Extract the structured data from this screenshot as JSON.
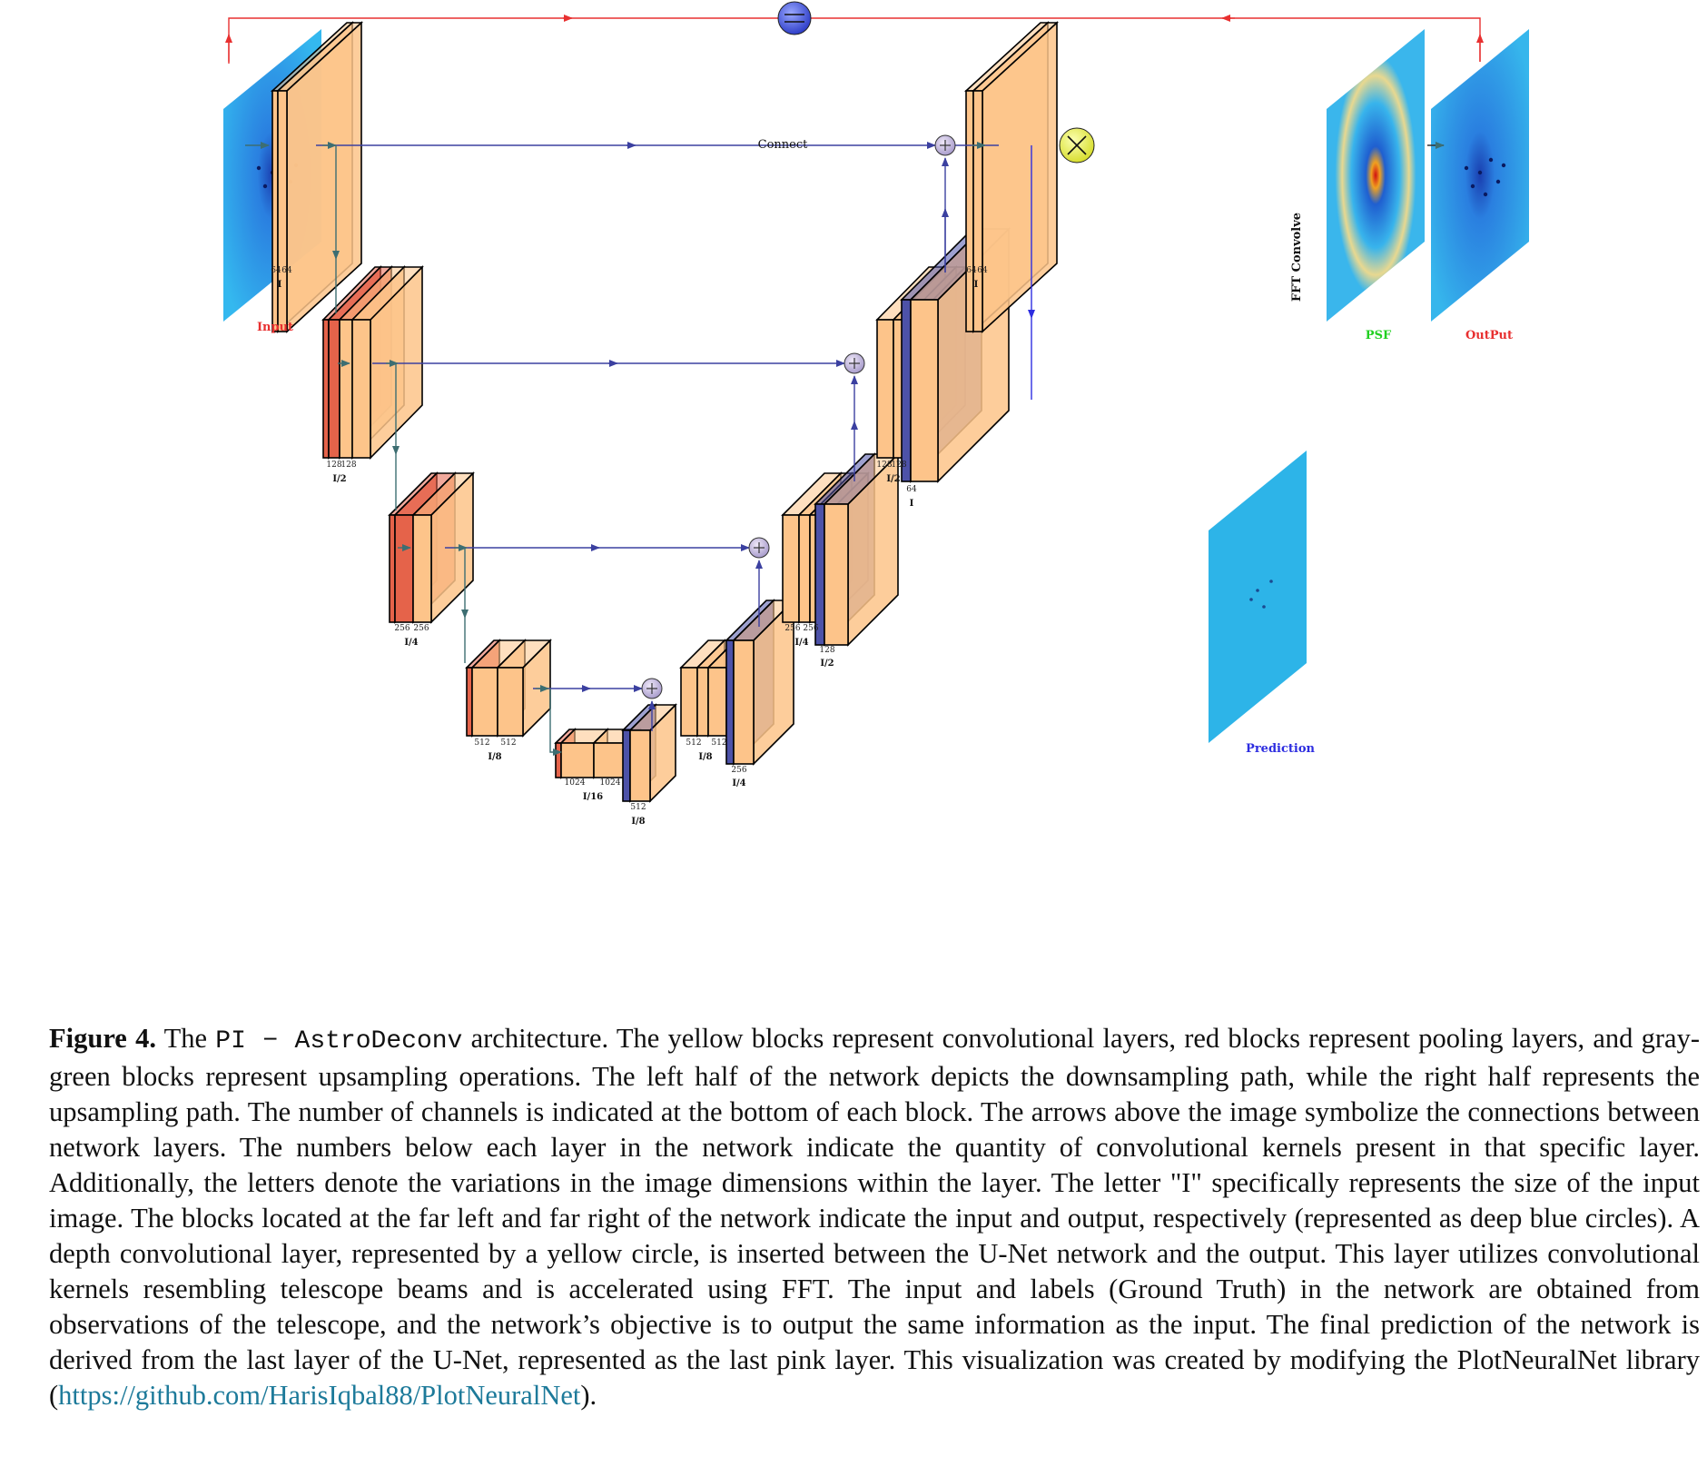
{
  "diagram": {
    "labels": {
      "input": "Input",
      "psf": "PSF",
      "output": "OutPut",
      "prediction": "Prediction",
      "connect": "Connect",
      "fft": "FFT Convolve"
    },
    "enc": [
      {
        "dims": [
          "64",
          "64"
        ],
        "scale": "I"
      },
      {
        "dims": [
          "128",
          "128"
        ],
        "scale": "I/2"
      },
      {
        "dims": [
          "256",
          "256"
        ],
        "scale": "I/4"
      },
      {
        "dims": [
          "512",
          "512"
        ],
        "scale": "I/8"
      },
      {
        "dims": [
          "1024",
          "1024"
        ],
        "scale": "I/16"
      }
    ],
    "dec": [
      {
        "dims": [
          "512",
          "512"
        ],
        "scale": "I/8",
        "up": "256",
        "upscale": "I/4"
      },
      {
        "dims": [
          "256",
          "256"
        ],
        "scale": "I/4",
        "up": "128",
        "upscale": "I/2"
      },
      {
        "dims": [
          "128",
          "128"
        ],
        "scale": "I/2",
        "up": "64",
        "upscale": "I"
      },
      {
        "dims": [
          "64",
          "64"
        ],
        "scale": "I"
      }
    ],
    "bottleneck_up": {
      "dim": "512",
      "scale": "I/8"
    },
    "colors": {
      "conv": "#fdc48a",
      "pool": "#e5634a",
      "upsample": "#4d52a8",
      "skip": "#3b40a0",
      "down": "#3d6e72",
      "loop": "#e83030",
      "image": "#2db4e8"
    }
  },
  "caption": {
    "fig": "Figure 4.",
    "text1": " The ",
    "code": "PI − AstroDeconv",
    "text2": " architecture. The yellow blocks represent convolutional layers, red blocks represent pooling layers, and gray-green blocks represent upsampling operations. The left half of the network depicts the downsampling path, while the right half represents the upsampling path. The number of channels is indicated at the bottom of each block. The arrows above the image symbolize the connections between network layers. The numbers below each layer in the network indicate the quantity of convolutional kernels present in that specific layer. Additionally, the letters denote the variations in the image dimensions within the layer. The letter \"I\" specifically represents the size of the input image. The blocks located at the far left and far right of the network indicate the input and output, respectively (represented as deep blue circles). A depth convolutional layer, represented by a yellow circle, is inserted between the U-Net network and the output. This layer utilizes convolutional kernels resembling telescope beams and is accelerated using FFT. The input and labels (Ground Truth) in the network are obtained from observations of the telescope, and the network’s objective is to output the same information as the input. The final prediction of the network is derived from the last layer of the U-Net, represented as the last pink layer. This visualization was created by modifying the PlotNeuralNet library (",
    "link": "https://github.com/HarisIqbal88/PlotNeuralNet",
    "text3": ")."
  }
}
